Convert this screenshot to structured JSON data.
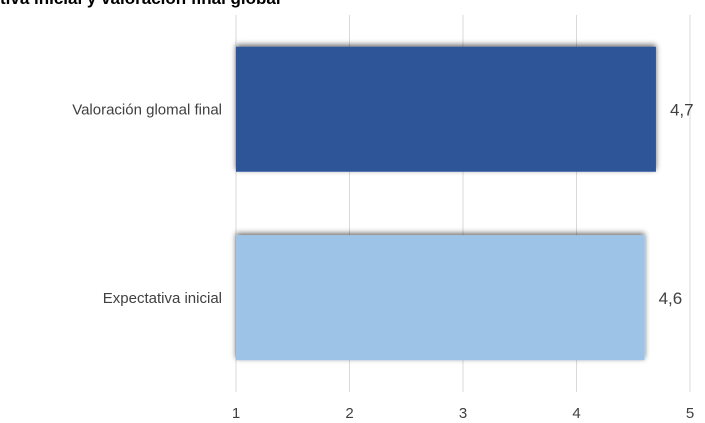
{
  "chart_data": {
    "type": "bar",
    "orientation": "horizontal",
    "title": "tiva inicial y valoración final global",
    "categories": [
      "Valoración glomal final",
      "Expectativa inicial"
    ],
    "values": [
      4.7,
      4.6
    ],
    "value_labels": [
      "4,7",
      "4,6"
    ],
    "bar_colors": [
      "#2f5597",
      "#9dc3e6"
    ],
    "xlim": [
      1,
      5
    ],
    "x_ticks": [
      1,
      2,
      3,
      4,
      5
    ],
    "x_tick_labels": [
      "1",
      "2",
      "3",
      "4",
      "5"
    ],
    "xlabel": "",
    "ylabel": "",
    "grid": true,
    "legend": "none"
  }
}
